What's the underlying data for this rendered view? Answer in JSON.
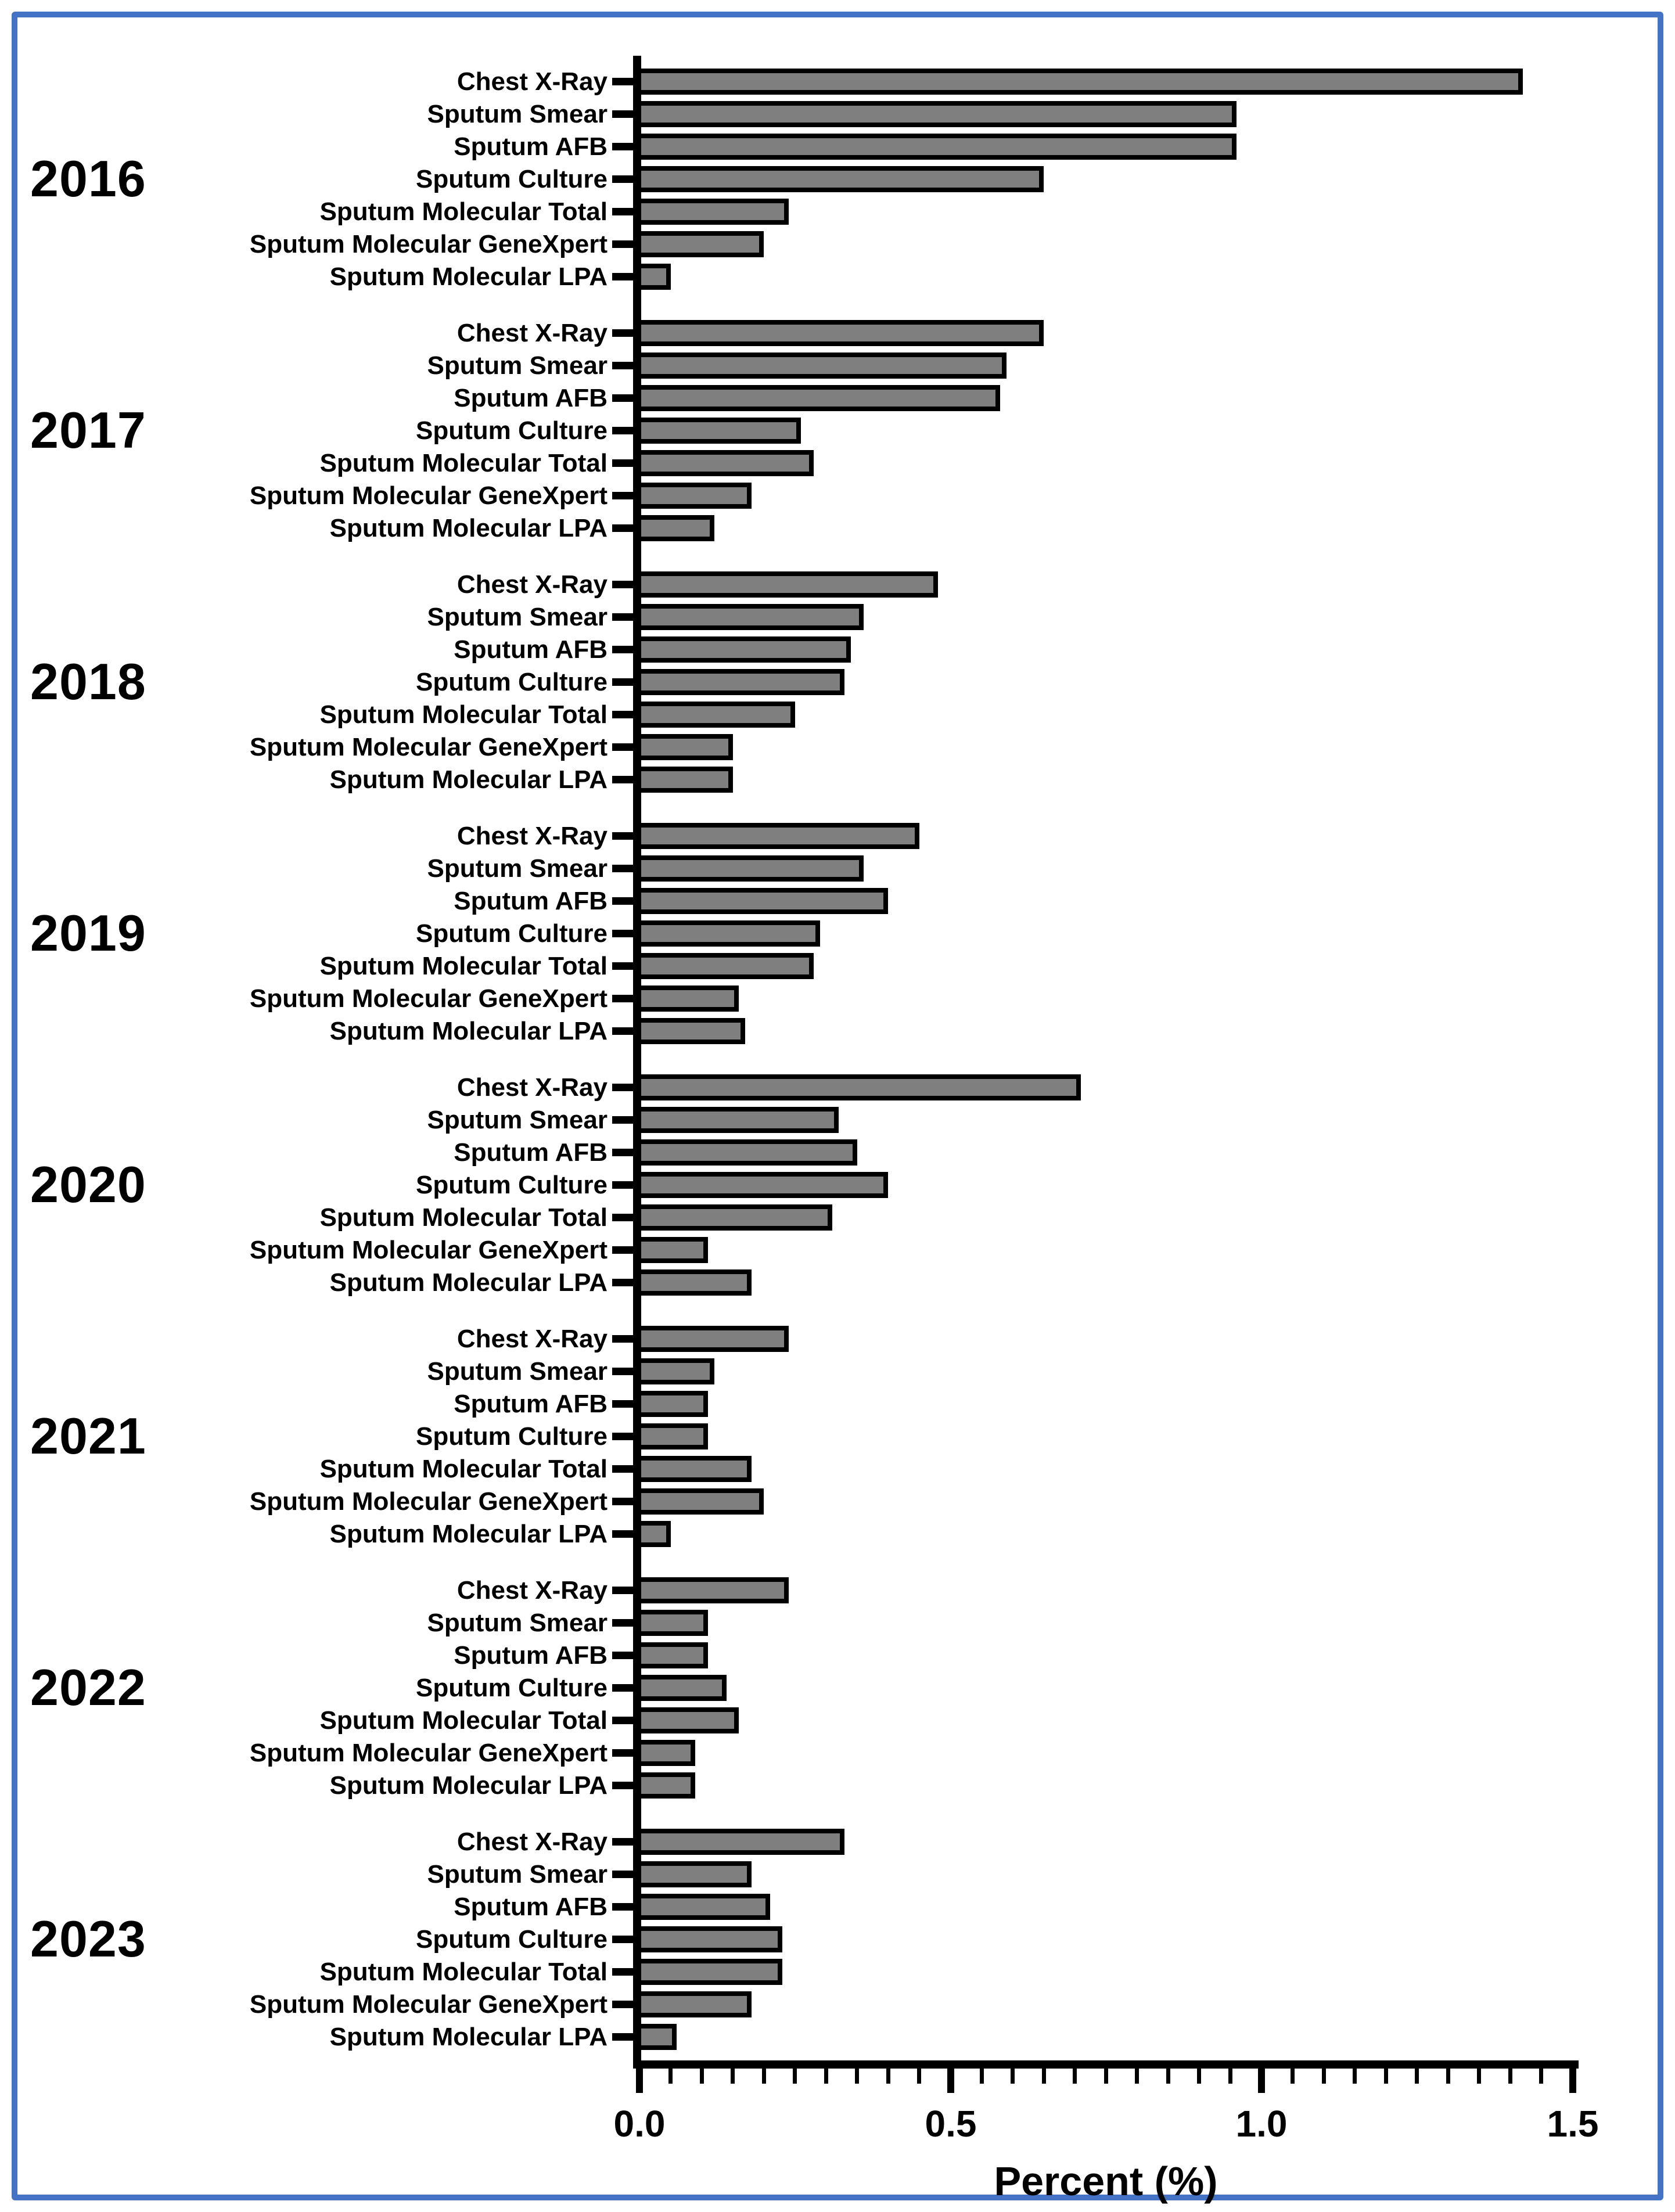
{
  "frame": {
    "border_color": "#4472C4",
    "background": "#ffffff"
  },
  "chart_data": {
    "type": "bar",
    "orientation": "horizontal",
    "title": "",
    "xlabel": "Percent (%)",
    "xlim": [
      0,
      1.5
    ],
    "x_ticks": [
      0.0,
      0.5,
      1.0,
      1.5
    ],
    "x_tick_labels": [
      "0.0",
      "0.5",
      "1.0",
      "1.5"
    ],
    "minor_tick_step": 0.05,
    "grid": false,
    "legend": "none",
    "bar_fill": "#7f7f7f",
    "bar_border": "#000000",
    "categories": [
      "Chest X-Ray",
      "Sputum Smear",
      "Sputum AFB",
      "Sputum Culture",
      "Sputum Molecular Total",
      "Sputum Molecular GeneXpert",
      "Sputum Molecular LPA"
    ],
    "groups": [
      {
        "year": "2016",
        "values": [
          1.42,
          0.96,
          0.96,
          0.65,
          0.24,
          0.2,
          0.05
        ]
      },
      {
        "year": "2017",
        "values": [
          0.65,
          0.59,
          0.58,
          0.26,
          0.28,
          0.18,
          0.12
        ]
      },
      {
        "year": "2018",
        "values": [
          0.48,
          0.36,
          0.34,
          0.33,
          0.25,
          0.15,
          0.15
        ]
      },
      {
        "year": "2019",
        "values": [
          0.45,
          0.36,
          0.4,
          0.29,
          0.28,
          0.16,
          0.17
        ]
      },
      {
        "year": "2020",
        "values": [
          0.71,
          0.32,
          0.35,
          0.4,
          0.31,
          0.11,
          0.18
        ]
      },
      {
        "year": "2021",
        "values": [
          0.24,
          0.12,
          0.11,
          0.11,
          0.18,
          0.2,
          0.05
        ]
      },
      {
        "year": "2022",
        "values": [
          0.24,
          0.11,
          0.11,
          0.14,
          0.16,
          0.09,
          0.09
        ]
      },
      {
        "year": "2023",
        "values": [
          0.33,
          0.18,
          0.21,
          0.23,
          0.23,
          0.18,
          0.06
        ]
      }
    ]
  }
}
